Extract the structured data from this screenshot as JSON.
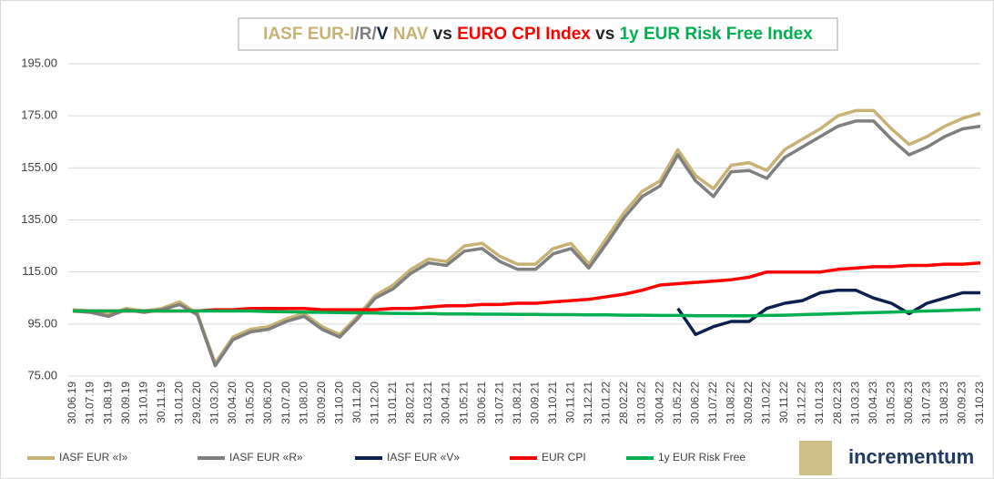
{
  "chart_data": {
    "type": "line",
    "title_parts": [
      {
        "text": "IASF EUR-I",
        "color": "#c8b273"
      },
      {
        "text": "/R/",
        "color": "#7f7f7f"
      },
      {
        "text": "V",
        "color": "#0d1f4f"
      },
      {
        "text": " NAV",
        "color": "#c8b273"
      },
      {
        "text": " vs ",
        "color": "#262626"
      },
      {
        "text": "EURO CPI Index",
        "color": "#ff0000"
      },
      {
        "text": " vs ",
        "color": "#262626"
      },
      {
        "text": "1y EUR Risk Free Index",
        "color": "#00b050"
      }
    ],
    "categories": [
      "30.06.19",
      "31.07.19",
      "31.08.19",
      "30.09.19",
      "31.10.19",
      "30.11.19",
      "31.01.20",
      "29.02.20",
      "31.03.20",
      "30.04.20",
      "31.05.20",
      "30.06.20",
      "31.07.20",
      "31.08.20",
      "30.09.20",
      "31.10.20",
      "30.11.20",
      "31.12.20",
      "31.01.21",
      "28.02.21",
      "31.03.21",
      "30.04.21",
      "31.05.21",
      "30.06.21",
      "31.07.21",
      "31.08.21",
      "30.09.21",
      "31.10.21",
      "30.11.21",
      "31.12.21",
      "31.01.22",
      "28.02.22",
      "31.03.22",
      "30.04.22",
      "31.05.22",
      "30.06.22",
      "31.07.22",
      "31.08.22",
      "30.09.22",
      "31.10.22",
      "30.11.22",
      "31.12.22",
      "31.01.23",
      "28.02.23",
      "31.03.23",
      "30.04.23",
      "31.05.23",
      "30.06.23",
      "31.07.23",
      "31.08.23",
      "30.09.23",
      "31.10.23"
    ],
    "series": [
      {
        "name": "IASF EUR «I»",
        "color": "#c8b273",
        "values": [
          100.5,
          100,
          98.5,
          101,
          100,
          101,
          103.5,
          99,
          80,
          90,
          93,
          94,
          97,
          99,
          94,
          91,
          98,
          106,
          110,
          116,
          120,
          119,
          125,
          126,
          121,
          118,
          118,
          124,
          126,
          118,
          128,
          138,
          146,
          150,
          162,
          152,
          147,
          156,
          157,
          154,
          162,
          166,
          170,
          175,
          177,
          177,
          170,
          164,
          167,
          171,
          174,
          176
        ]
      },
      {
        "name": "IASF EUR «R»",
        "color": "#7f7f7f",
        "values": [
          100,
          99.5,
          98,
          100.5,
          99.5,
          100.5,
          102.5,
          98.5,
          79,
          89,
          92,
          93,
          96,
          98,
          93,
          90,
          97,
          105,
          108.5,
          114.5,
          118.5,
          117.5,
          123,
          124,
          119,
          116,
          116,
          122,
          124,
          116.5,
          126,
          136,
          144,
          148,
          160,
          150,
          144,
          153.5,
          154,
          151,
          159,
          163,
          167,
          171,
          173,
          173,
          166,
          160,
          163,
          167,
          170,
          171
        ]
      },
      {
        "name": "IASF EUR «V»",
        "color": "#0d1f4f",
        "values": [
          null,
          null,
          null,
          null,
          null,
          null,
          null,
          null,
          null,
          null,
          null,
          null,
          null,
          null,
          null,
          null,
          null,
          null,
          null,
          null,
          null,
          null,
          null,
          null,
          null,
          null,
          null,
          null,
          null,
          null,
          null,
          null,
          null,
          null,
          101,
          91,
          94,
          96,
          96,
          101,
          103,
          104,
          107,
          108,
          108,
          105,
          103,
          99,
          103,
          105,
          107,
          107
        ]
      },
      {
        "name": "EUR CPI",
        "color": "#ff0000",
        "values": [
          100,
          100,
          100,
          100,
          100,
          100,
          100,
          100,
          100.5,
          100.5,
          101,
          101,
          101,
          101,
          100.5,
          100.5,
          100.5,
          100.5,
          101,
          101,
          101.5,
          102,
          102,
          102.5,
          102.5,
          103,
          103,
          103.5,
          104,
          104.5,
          105.5,
          106.5,
          108,
          110,
          110.5,
          111,
          111.5,
          112,
          113,
          115,
          115,
          115,
          115,
          116,
          116.5,
          117,
          117,
          117.5,
          117.5,
          118,
          118,
          118.5
        ]
      },
      {
        "name": "1y EUR Risk Free",
        "color": "#00b050",
        "values": [
          100,
          100,
          100,
          100,
          100,
          100,
          100,
          100,
          100,
          100,
          100,
          99.8,
          99.7,
          99.6,
          99.5,
          99.4,
          99.3,
          99.2,
          99.1,
          99,
          99,
          98.9,
          98.9,
          98.8,
          98.8,
          98.7,
          98.7,
          98.6,
          98.6,
          98.5,
          98.5,
          98.4,
          98.4,
          98.3,
          98.3,
          98.2,
          98.2,
          98.2,
          98.2,
          98.3,
          98.4,
          98.6,
          98.8,
          99,
          99.2,
          99.4,
          99.6,
          99.8,
          100,
          100.2,
          100.4,
          100.6
        ]
      }
    ],
    "ylim": [
      75,
      195
    ],
    "yticks": [
      {
        "value": 75,
        "label": "75.00"
      },
      {
        "value": 95,
        "label": "95.00"
      },
      {
        "value": 115,
        "label": "115.00"
      },
      {
        "value": 135,
        "label": "135.00"
      },
      {
        "value": 155,
        "label": "155.00"
      },
      {
        "value": 175,
        "label": "175.00"
      },
      {
        "value": 195,
        "label": "195.00"
      }
    ],
    "grid": true,
    "legend": "bottom",
    "logo_text": "incrementum"
  }
}
